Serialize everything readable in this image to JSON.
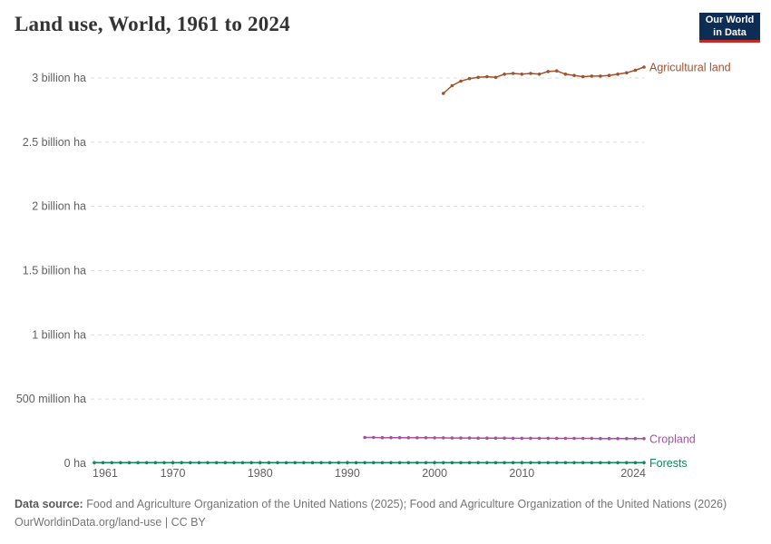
{
  "header": {
    "title": "Land use, World, 1961 to 2024",
    "logo": {
      "line1": "Our World",
      "line2": "in Data",
      "bg_color": "#0d2d54",
      "accent_color": "#c72822"
    }
  },
  "footer": {
    "source_label": "Data source:",
    "source_text": " Food and Agriculture Organization of the United Nations (2025); Food and Agriculture Organization of the United Nations (2026)",
    "url": "OurWorldinData.org/land-use",
    "separator": " | ",
    "license": "CC BY"
  },
  "chart_data": {
    "type": "line",
    "title": "Land use, World, 1961 to 2024",
    "unit": "million ha",
    "xlabel": "",
    "ylabel": "",
    "x_range": [
      1961,
      2024
    ],
    "ylim_mha": [
      0,
      3000
    ],
    "grid": true,
    "grid_style": "dashed",
    "legend_position": "right-of-line-end",
    "x_ticks": [
      1961,
      1970,
      1980,
      1990,
      2000,
      2010,
      2024
    ],
    "y_ticks": [
      {
        "value_mha": 3000,
        "label": "3 billion ha"
      },
      {
        "value_mha": 2500,
        "label": "2.5 billion ha"
      },
      {
        "value_mha": 2000,
        "label": "2 billion ha"
      },
      {
        "value_mha": 1500,
        "label": "1.5 billion ha"
      },
      {
        "value_mha": 1000,
        "label": "1 billion ha"
      },
      {
        "value_mha": 500,
        "label": "500 million ha"
      },
      {
        "value_mha": 0,
        "label": "0 ha"
      }
    ],
    "series": [
      {
        "name": "Agricultural land",
        "color": "#a0522d",
        "start_year": 2001,
        "values": [
          2880,
          2940,
          2975,
          2995,
          3005,
          3010,
          3005,
          3030,
          3035,
          3030,
          3035,
          3030,
          3050,
          3055,
          3030,
          3020,
          3010,
          3015,
          3015,
          3020,
          3030,
          3040,
          3060,
          3085
        ]
      },
      {
        "name": "Cropland",
        "color": "#a2559c",
        "start_year": 1992,
        "values": [
          201,
          201,
          200,
          200,
          200,
          199,
          199,
          199,
          198,
          198,
          197,
          197,
          197,
          196,
          196,
          196,
          196,
          195,
          195,
          195,
          195,
          195,
          194,
          194,
          194,
          194,
          194,
          193,
          193,
          193,
          193,
          193,
          192
        ]
      },
      {
        "name": "Forests",
        "color": "#0a8a5c",
        "start_year": 1961,
        "values": [
          5,
          5,
          5,
          5,
          5,
          5,
          5,
          5,
          5,
          5,
          5,
          5,
          5,
          5,
          5,
          5,
          5,
          5,
          5,
          5,
          5,
          5,
          5,
          5,
          5,
          5,
          5,
          5,
          5,
          5,
          5,
          5,
          5,
          5,
          5,
          5,
          5,
          5,
          5,
          5,
          5,
          5,
          5,
          5,
          5,
          5,
          5,
          5,
          5,
          5,
          5,
          5,
          5,
          5,
          5,
          5,
          5,
          5,
          5,
          5,
          5,
          5,
          5,
          5
        ]
      }
    ]
  }
}
